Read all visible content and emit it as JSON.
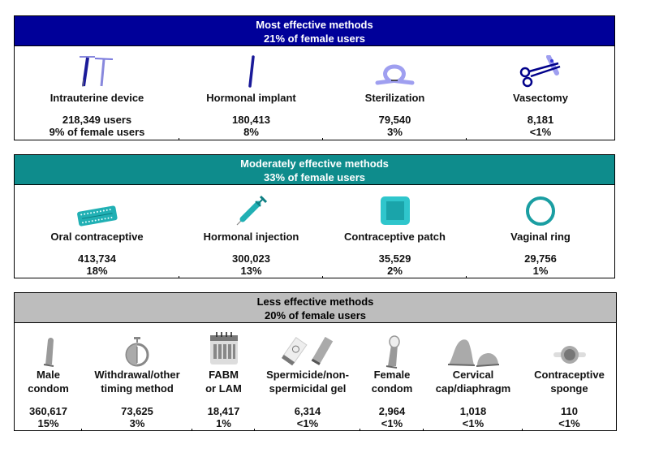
{
  "colors": {
    "most_header": "#000099",
    "moderate_header": "#0e8c8c",
    "less_header": "#bdbdbd"
  },
  "panels": [
    {
      "title": "Most effective methods",
      "subtitle": "21% of female users",
      "items": [
        {
          "label": "Intrauterine device",
          "users": "218,349 users",
          "share": "9% of female users",
          "icon": "iud-icon"
        },
        {
          "label": "Hormonal implant",
          "users": "180,413",
          "share": "8%",
          "icon": "implant-icon"
        },
        {
          "label": "Sterilization",
          "users": "79,540",
          "share": "3%",
          "icon": "sterilization-icon"
        },
        {
          "label": "Vasectomy",
          "users": "8,181",
          "share": "<1%",
          "icon": "scissors-icon"
        }
      ]
    },
    {
      "title": "Moderately effective methods",
      "subtitle": "33% of female users",
      "items": [
        {
          "label": "Oral contraceptive",
          "users": "413,734",
          "share": "18%",
          "icon": "pill-pack-icon"
        },
        {
          "label": "Hormonal injection",
          "users": "300,023",
          "share": "13%",
          "icon": "syringe-icon"
        },
        {
          "label": "Contraceptive patch",
          "users": "35,529",
          "share": "2%",
          "icon": "patch-icon"
        },
        {
          "label": "Vaginal ring",
          "users": "29,756",
          "share": "1%",
          "icon": "ring-icon"
        }
      ]
    },
    {
      "title": "Less effective methods",
      "subtitle": "20% of female users",
      "items": [
        {
          "label1": "Male",
          "label2": "condom",
          "users": "360,617",
          "share": "15%",
          "icon": "male-condom-icon"
        },
        {
          "label1": "Withdrawal/other",
          "label2": "timing method",
          "users": "73,625",
          "share": "3%",
          "icon": "stopwatch-icon"
        },
        {
          "label1": "FABM",
          "label2": "or LAM",
          "users": "18,417",
          "share": "1%",
          "icon": "calendar-icon"
        },
        {
          "label1": "Spermicide/non-",
          "label2": "spermicidal gel",
          "users": "6,314",
          "share": "<1%",
          "icon": "gel-tubes-icon"
        },
        {
          "label1": "Female",
          "label2": "condom",
          "users": "2,964",
          "share": "<1%",
          "icon": "female-condom-icon"
        },
        {
          "label1": "Cervical",
          "label2": "cap/diaphragm",
          "users": "1,018",
          "share": "<1%",
          "icon": "cervical-cap-icon"
        },
        {
          "label1": "Contraceptive",
          "label2": "sponge",
          "users": "110",
          "share": "<1%",
          "icon": "sponge-icon"
        }
      ]
    }
  ]
}
